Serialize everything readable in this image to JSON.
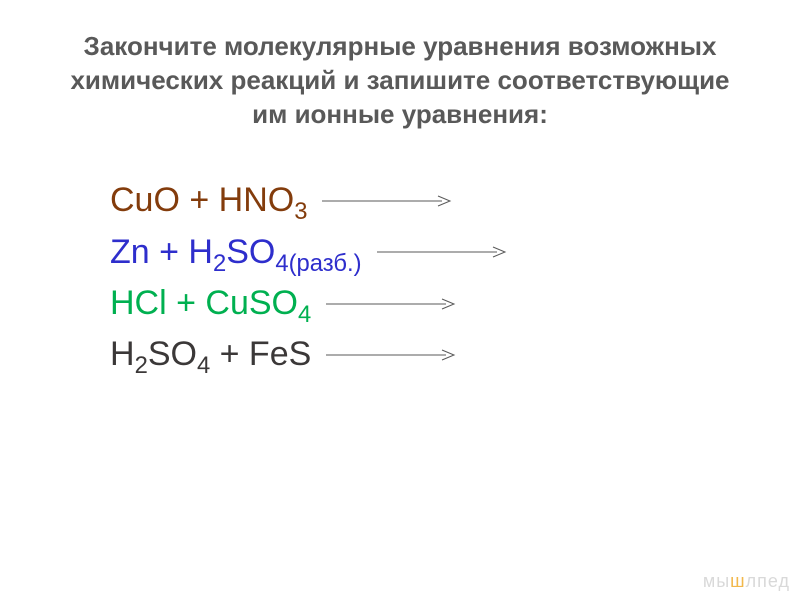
{
  "title": "Закончите молекулярные уравнения возможных химических реакций и запишите соответствующие им ионные уравнения:",
  "title_color": "#595959",
  "title_fontsize": 26,
  "equations": [
    {
      "html": "СuO + HNO<sub>3</sub>",
      "color": "#833c0c"
    },
    {
      "html": "Zn + H<sub>2</sub>SO<sub>4(разб.)</sub>",
      "color": "#2e2ecc"
    },
    {
      "html": "HCl + CuSO<sub>4</sub>",
      "color": "#00b050"
    },
    {
      "html": "H<sub>2</sub>SO<sub>4</sub> + FeS",
      "color": "#3b3838"
    }
  ],
  "equation_fontsize": 34,
  "arrow": {
    "length": 130,
    "stroke": "#595959",
    "stroke_width": 1
  },
  "watermark": {
    "prefix": "мы",
    "accent": "ш",
    "suffix": "лпед",
    "color_main": "#d9d9d9",
    "color_accent": "#f2b84b"
  },
  "background_color": "#ffffff"
}
